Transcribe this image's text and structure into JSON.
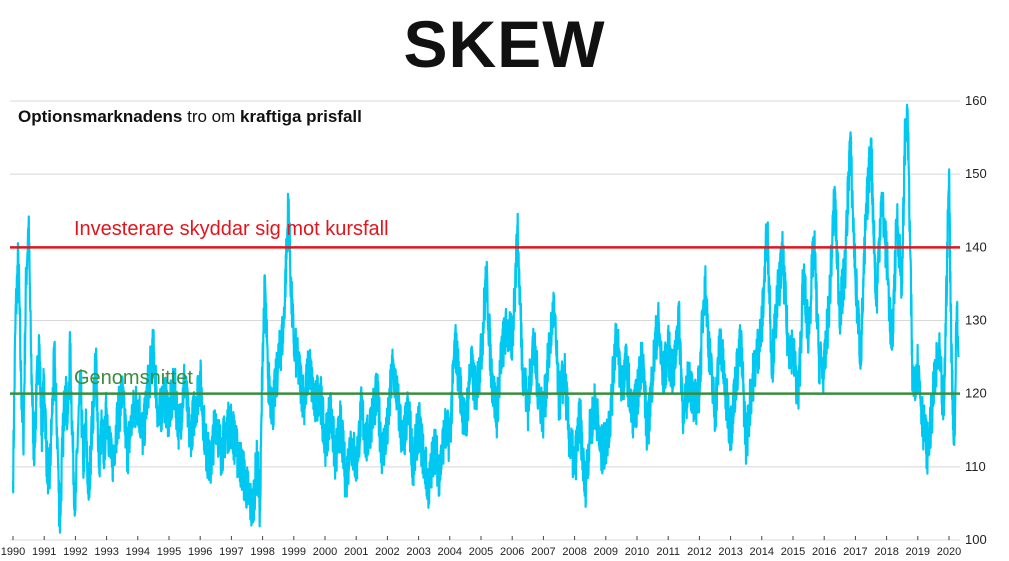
{
  "title": "SKEW",
  "subtitle": {
    "part1": "Optionsmarknadens",
    "part2": " tro om ",
    "part3": "kraftiga prisfall"
  },
  "colors": {
    "series": "#00c8f0",
    "upper_line": "#e0161c",
    "mean_line": "#3a8d3c",
    "grid": "#d8d8d8"
  },
  "chart_data": {
    "type": "line",
    "title": "SKEW",
    "subtitle": "Optionsmarknadens tro om kraftiga prisfall",
    "xlim": [
      1990,
      2020.3
    ],
    "ylim": [
      100,
      160
    ],
    "y_axis_position": "right",
    "grid": true,
    "x_ticks": [
      "1990",
      "1991",
      "1992",
      "1993",
      "1994",
      "1995",
      "1996",
      "1997",
      "1998",
      "1999",
      "2000",
      "2001",
      "2002",
      "2003",
      "2004",
      "2005",
      "2006",
      "2007",
      "2008",
      "2009",
      "2010",
      "2011",
      "2012",
      "2013",
      "2014",
      "2015",
      "2016",
      "2017",
      "2018",
      "2019",
      "2020"
    ],
    "y_ticks": [
      "100",
      "110",
      "120",
      "130",
      "140",
      "150",
      "160"
    ],
    "reference_lines": [
      {
        "label": "Investerare skyddar sig mot kursfall",
        "y": 140
      },
      {
        "label": "Genomsnittet",
        "y": 120
      }
    ],
    "series": [
      {
        "points": [
          [
            1990.0,
            108
          ],
          [
            1990.08,
            130
          ],
          [
            1990.17,
            139
          ],
          [
            1990.25,
            123
          ],
          [
            1990.33,
            113
          ],
          [
            1990.42,
            136
          ],
          [
            1990.5,
            143
          ],
          [
            1990.58,
            125
          ],
          [
            1990.67,
            112
          ],
          [
            1990.75,
            119
          ],
          [
            1990.83,
            128
          ],
          [
            1990.92,
            115
          ],
          [
            1991.0,
            122
          ],
          [
            1991.08,
            111
          ],
          [
            1991.17,
            108
          ],
          [
            1991.25,
            117
          ],
          [
            1991.33,
            125
          ],
          [
            1991.42,
            114
          ],
          [
            1991.5,
            102
          ],
          [
            1991.58,
            112
          ],
          [
            1991.67,
            121
          ],
          [
            1991.75,
            116
          ],
          [
            1991.83,
            126
          ],
          [
            1991.92,
            112
          ],
          [
            1992.0,
            104
          ],
          [
            1992.08,
            115
          ],
          [
            1992.17,
            121
          ],
          [
            1992.25,
            110
          ],
          [
            1992.33,
            116
          ],
          [
            1992.42,
            106
          ],
          [
            1992.5,
            113
          ],
          [
            1992.58,
            119
          ],
          [
            1992.67,
            125
          ],
          [
            1992.75,
            110
          ],
          [
            1992.83,
            115
          ],
          [
            1992.92,
            112
          ],
          [
            1993.0,
            118
          ],
          [
            1993.17,
            110
          ],
          [
            1993.33,
            116
          ],
          [
            1993.5,
            120
          ],
          [
            1993.67,
            112
          ],
          [
            1993.83,
            117
          ],
          [
            1994.0,
            119
          ],
          [
            1994.17,
            114
          ],
          [
            1994.33,
            121
          ],
          [
            1994.5,
            126
          ],
          [
            1994.67,
            116
          ],
          [
            1994.83,
            120
          ],
          [
            1995.0,
            117
          ],
          [
            1995.17,
            121
          ],
          [
            1995.33,
            115
          ],
          [
            1995.5,
            122
          ],
          [
            1995.67,
            114
          ],
          [
            1995.83,
            118
          ],
          [
            1996.0,
            122
          ],
          [
            1996.17,
            113
          ],
          [
            1996.33,
            110
          ],
          [
            1996.5,
            117
          ],
          [
            1996.67,
            112
          ],
          [
            1996.83,
            115
          ],
          [
            1997.0,
            116
          ],
          [
            1997.17,
            112
          ],
          [
            1997.33,
            110
          ],
          [
            1997.5,
            107
          ],
          [
            1997.67,
            104
          ],
          [
            1997.83,
            111
          ],
          [
            1997.92,
            104
          ],
          [
            1998.0,
            126
          ],
          [
            1998.08,
            135
          ],
          [
            1998.17,
            122
          ],
          [
            1998.33,
            118
          ],
          [
            1998.5,
            124
          ],
          [
            1998.67,
            129
          ],
          [
            1998.83,
            146
          ],
          [
            1998.92,
            133
          ],
          [
            1999.0,
            127
          ],
          [
            1999.17,
            123
          ],
          [
            1999.33,
            119
          ],
          [
            1999.5,
            124
          ],
          [
            1999.67,
            118
          ],
          [
            1999.83,
            121
          ],
          [
            2000.0,
            113
          ],
          [
            2000.17,
            118
          ],
          [
            2000.33,
            111
          ],
          [
            2000.5,
            116
          ],
          [
            2000.67,
            108
          ],
          [
            2000.83,
            114
          ],
          [
            2001.0,
            110
          ],
          [
            2001.17,
            118
          ],
          [
            2001.33,
            113
          ],
          [
            2001.5,
            117
          ],
          [
            2001.67,
            120
          ],
          [
            2001.83,
            112
          ],
          [
            2002.0,
            115
          ],
          [
            2002.17,
            124
          ],
          [
            2002.33,
            119
          ],
          [
            2002.5,
            113
          ],
          [
            2002.67,
            118
          ],
          [
            2002.83,
            110
          ],
          [
            2003.0,
            116
          ],
          [
            2003.17,
            111
          ],
          [
            2003.33,
            107
          ],
          [
            2003.5,
            113
          ],
          [
            2003.67,
            109
          ],
          [
            2003.83,
            115
          ],
          [
            2004.0,
            114
          ],
          [
            2004.17,
            127
          ],
          [
            2004.33,
            121
          ],
          [
            2004.5,
            115
          ],
          [
            2004.67,
            124
          ],
          [
            2004.83,
            120
          ],
          [
            2005.0,
            125
          ],
          [
            2005.17,
            136
          ],
          [
            2005.33,
            123
          ],
          [
            2005.5,
            117
          ],
          [
            2005.67,
            126
          ],
          [
            2005.83,
            129
          ],
          [
            2006.0,
            127
          ],
          [
            2006.17,
            142
          ],
          [
            2006.33,
            124
          ],
          [
            2006.5,
            118
          ],
          [
            2006.67,
            127
          ],
          [
            2006.83,
            121
          ],
          [
            2007.0,
            117
          ],
          [
            2007.17,
            125
          ],
          [
            2007.33,
            132
          ],
          [
            2007.5,
            119
          ],
          [
            2007.67,
            123
          ],
          [
            2007.83,
            114
          ],
          [
            2008.0,
            110
          ],
          [
            2008.17,
            117
          ],
          [
            2008.33,
            107
          ],
          [
            2008.5,
            115
          ],
          [
            2008.67,
            119
          ],
          [
            2008.83,
            112
          ],
          [
            2009.0,
            113
          ],
          [
            2009.17,
            118
          ],
          [
            2009.33,
            129
          ],
          [
            2009.5,
            121
          ],
          [
            2009.67,
            124
          ],
          [
            2009.83,
            117
          ],
          [
            2010.0,
            119
          ],
          [
            2010.17,
            126
          ],
          [
            2010.33,
            114
          ],
          [
            2010.5,
            123
          ],
          [
            2010.67,
            130
          ],
          [
            2010.83,
            122
          ],
          [
            2011.0,
            126
          ],
          [
            2011.17,
            122
          ],
          [
            2011.33,
            131
          ],
          [
            2011.5,
            116
          ],
          [
            2011.67,
            123
          ],
          [
            2011.83,
            118
          ],
          [
            2012.0,
            121
          ],
          [
            2012.17,
            136
          ],
          [
            2012.33,
            125
          ],
          [
            2012.5,
            117
          ],
          [
            2012.67,
            128
          ],
          [
            2012.83,
            120
          ],
          [
            2013.0,
            115
          ],
          [
            2013.17,
            122
          ],
          [
            2013.33,
            127
          ],
          [
            2013.5,
            113
          ],
          [
            2013.67,
            121
          ],
          [
            2013.83,
            125
          ],
          [
            2014.0,
            129
          ],
          [
            2014.17,
            143
          ],
          [
            2014.33,
            124
          ],
          [
            2014.5,
            133
          ],
          [
            2014.67,
            139
          ],
          [
            2014.83,
            127
          ],
          [
            2015.0,
            126
          ],
          [
            2015.17,
            119
          ],
          [
            2015.33,
            136
          ],
          [
            2015.5,
            128
          ],
          [
            2015.67,
            141
          ],
          [
            2015.83,
            125
          ],
          [
            2016.0,
            123
          ],
          [
            2016.17,
            133
          ],
          [
            2016.33,
            147
          ],
          [
            2016.5,
            131
          ],
          [
            2016.67,
            137
          ],
          [
            2016.83,
            155
          ],
          [
            2017.0,
            136
          ],
          [
            2017.17,
            125
          ],
          [
            2017.33,
            143
          ],
          [
            2017.5,
            154
          ],
          [
            2017.67,
            132
          ],
          [
            2017.83,
            147
          ],
          [
            2018.0,
            139
          ],
          [
            2018.17,
            126
          ],
          [
            2018.33,
            144
          ],
          [
            2018.5,
            135
          ],
          [
            2018.58,
            154
          ],
          [
            2018.67,
            159
          ],
          [
            2018.75,
            141
          ],
          [
            2018.83,
            121
          ],
          [
            2019.0,
            124
          ],
          [
            2019.17,
            116
          ],
          [
            2019.33,
            112
          ],
          [
            2019.5,
            120
          ],
          [
            2019.67,
            126
          ],
          [
            2019.83,
            117
          ],
          [
            2020.0,
            150
          ],
          [
            2020.08,
            125
          ],
          [
            2020.17,
            113
          ],
          [
            2020.25,
            132
          ],
          [
            2020.3,
            125
          ]
        ]
      }
    ]
  }
}
